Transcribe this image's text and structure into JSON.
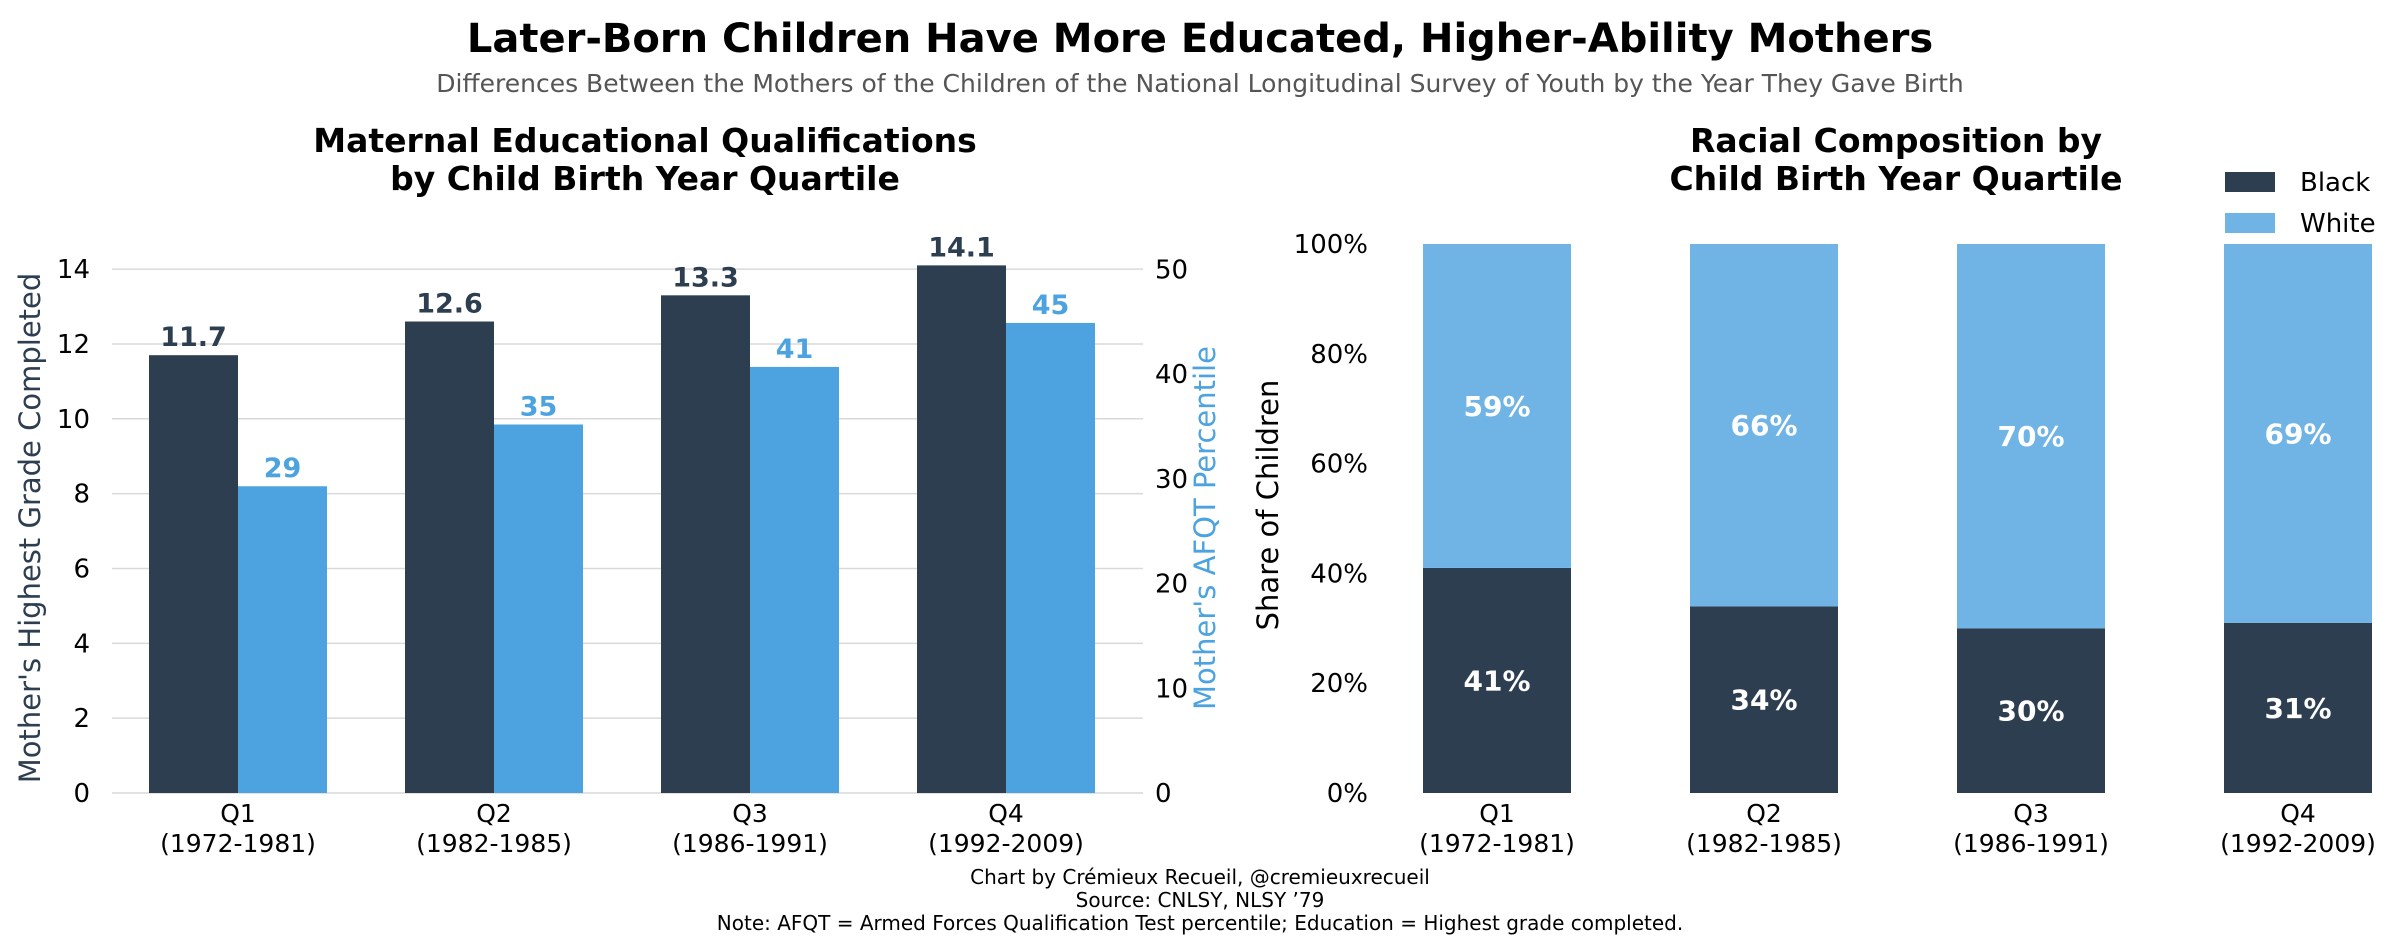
{
  "header": {
    "title": "Later-Born Children Have More Educated, Higher-Ability Mothers",
    "subtitle": "Differences Between the Mothers of the Children of the National Longitudinal Survey of Youth by the Year They Gave Birth"
  },
  "footer": {
    "credit": "Chart by Crémieux Recueil, @cremieuxrecueil",
    "source": "Source: CNLSY, NLSY ’79",
    "note": "Note: AFQT = Armed Forces Qualification Test percentile; Education = Highest grade completed."
  },
  "colors": {
    "dark": "#2d3e50",
    "blue": "#4ca3e0",
    "light_blue": "#6fb4e4",
    "grid": "#d9d9d9",
    "text": "#000000",
    "subtitle": "#555555"
  },
  "chart_data": [
    {
      "type": "bar",
      "title_lines": [
        "Maternal Educational Qualifications",
        "by Child Birth Year Quartile"
      ],
      "categories": [
        "Q1",
        "Q2",
        "Q3",
        "Q4"
      ],
      "category_ranges": [
        "(1972-1981)",
        "(1982-1985)",
        "(1986-1991)",
        "(1992-2009)"
      ],
      "series": [
        {
          "name": "Mother's Highest Grade Completed",
          "axis": "left",
          "values": [
            11.7,
            12.6,
            13.3,
            14.1
          ],
          "labels": [
            "11.7",
            "12.6",
            "13.3",
            "14.1"
          ]
        },
        {
          "name": "Mother's AFQT Percentile",
          "axis": "right",
          "values": [
            29.3,
            35.2,
            40.7,
            44.9
          ],
          "labels": [
            "29",
            "35",
            "41",
            "45"
          ]
        }
      ],
      "ylabel_left": "Mother's Highest Grade Completed",
      "ylabel_right": "Mother's AFQT Percentile",
      "ylim_left": [
        0,
        15.5
      ],
      "ylim_right": [
        0,
        55.4
      ],
      "yticks_left": [
        0,
        2,
        4,
        6,
        8,
        10,
        12,
        14
      ],
      "yticks_right": [
        0,
        10,
        20,
        30,
        40,
        50
      ],
      "grid": true
    },
    {
      "type": "bar",
      "stacked": true,
      "title_lines": [
        "Racial Composition by",
        "Child Birth Year Quartile"
      ],
      "categories": [
        "Q1",
        "Q2",
        "Q3",
        "Q4"
      ],
      "category_ranges": [
        "(1972-1981)",
        "(1982-1985)",
        "(1986-1991)",
        "(1992-2009)"
      ],
      "series": [
        {
          "name": "Black",
          "values": [
            41,
            34,
            30,
            31
          ],
          "labels": [
            "41%",
            "34%",
            "30%",
            "31%"
          ]
        },
        {
          "name": "White",
          "values": [
            59,
            66,
            70,
            69
          ],
          "labels": [
            "59%",
            "66%",
            "70%",
            "69%"
          ]
        }
      ],
      "ylabel": "Share of Children",
      "ylim": [
        0,
        100
      ],
      "yticks": [
        0,
        20,
        40,
        60,
        80,
        100
      ],
      "ytick_labels": [
        "0%",
        "20%",
        "40%",
        "60%",
        "80%",
        "100%"
      ],
      "legend_position": "top-right",
      "grid": false
    }
  ]
}
